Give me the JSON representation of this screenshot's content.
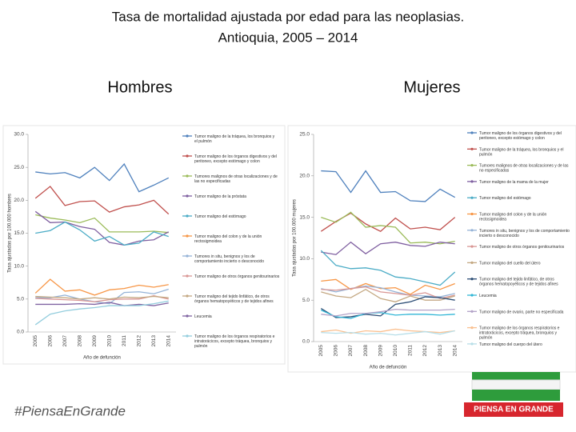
{
  "slide": {
    "title": [
      "Tasa de mortalidad ajustada por edad para las neoplasias.",
      "Antioquia, 2005 – 2014"
    ],
    "hashtag": "#PiensaEn​Grande",
    "logo": "PIENSA EN GRANDE"
  },
  "chart_data": [
    {
      "type": "line",
      "title": "Hombres",
      "x_label": "Año de defunción",
      "y_label": "Tasa ajustadas por 100.000 hombres",
      "categories": [
        "2005",
        "2006",
        "2007",
        "2008",
        "2009",
        "2010",
        "2011",
        "2012",
        "2013",
        "2014"
      ],
      "ylim": [
        0,
        30
      ],
      "yticks": [
        {
          "value": 0,
          "label": "0.0"
        },
        {
          "value": 5,
          "label": "5.0"
        },
        {
          "value": 10,
          "label": "10.0"
        },
        {
          "value": 15,
          "label": "15.0"
        },
        {
          "value": 20,
          "label": "20.0"
        },
        {
          "value": 25,
          "label": "25.0"
        },
        {
          "value": 30,
          "label": "30.0"
        }
      ],
      "series": [
        {
          "name": "Tumor maligno de la tráquea, los bronquios y el pulmón",
          "color": "#4f81bd",
          "values": [
            24.3,
            24.0,
            24.2,
            23.4,
            25.0,
            23.0,
            25.5,
            21.3,
            22.3,
            23.4
          ]
        },
        {
          "name": "Tumor maligno de los órganos digestivos y del peritoneo, excepto estómago y colon",
          "color": "#c0504d",
          "values": [
            20.3,
            22.1,
            19.2,
            19.8,
            19.9,
            18.2,
            19.0,
            19.3,
            20.0,
            17.9
          ]
        },
        {
          "name": "Tumores malignos de otras localizaciones y de las no especificadas",
          "color": "#9bbb59",
          "values": [
            17.8,
            17.3,
            17.0,
            16.6,
            17.3,
            15.2,
            15.2,
            15.2,
            15.3,
            15.1
          ]
        },
        {
          "name": "Tumor maligno de la próstata",
          "color": "#7f5fa0",
          "values": [
            18.3,
            16.6,
            16.7,
            16.0,
            15.6,
            13.6,
            13.2,
            13.8,
            14.0,
            15.2
          ]
        },
        {
          "name": "Tumor maligno del estómago",
          "color": "#4bacc6",
          "values": [
            15.0,
            15.4,
            16.7,
            15.5,
            13.8,
            14.5,
            13.2,
            13.5,
            15.2,
            14.5
          ]
        },
        {
          "name": "Tumor maligno del colon y de la unión rectosigmoidea",
          "color": "#f79646",
          "values": [
            5.9,
            8.0,
            6.2,
            6.4,
            5.6,
            6.4,
            6.6,
            7.1,
            6.8,
            7.2
          ]
        },
        {
          "name": "Tumores in situ, benignos y los de comportamiento incierto o desconocido",
          "color": "#95b3d7",
          "values": [
            5.2,
            5.2,
            5.6,
            5.0,
            4.6,
            4.3,
            6.0,
            6.1,
            5.8,
            6.5
          ]
        },
        {
          "name": "Tumor maligno de otros órganos genitourinarios",
          "color": "#d99694",
          "values": [
            5.1,
            5.0,
            4.9,
            4.8,
            4.6,
            4.9,
            5.0,
            5.0,
            5.5,
            5.0
          ]
        },
        {
          "name": "Tumor maligno del tejido linfático, de otros órganos hematopoyéticos y de tejidos afines",
          "color": "#c4a882",
          "values": [
            5.4,
            5.3,
            5.2,
            5.0,
            5.2,
            5.0,
            5.3,
            5.2,
            5.4,
            5.2
          ]
        },
        {
          "name": "Leucemia",
          "color": "#8064a2",
          "values": [
            4.2,
            4.2,
            4.2,
            4.3,
            4.2,
            4.5,
            4.0,
            4.2,
            4.0,
            4.4
          ]
        },
        {
          "name": "Tumor maligno de los órganos respiratorios e intratorácicos, excepto tráquea, bronquios y pulmón",
          "color": "#93cddd",
          "values": [
            1.1,
            2.7,
            3.2,
            3.5,
            3.7,
            4.0,
            4.0,
            4.0,
            4.3,
            4.7
          ]
        }
      ]
    },
    {
      "type": "line",
      "title": "Mujeres",
      "x_label": "Año de defunción",
      "y_label": "Tasa ajustadas por 100.000 mujeres",
      "categories": [
        "2005",
        "2006",
        "2007",
        "2008",
        "2009",
        "2010",
        "2011",
        "2012",
        "2013",
        "2014"
      ],
      "ylim": [
        0,
        25
      ],
      "yticks": [
        {
          "value": 0,
          "label": "0.0"
        },
        {
          "value": 5,
          "label": "5.0"
        },
        {
          "value": 10,
          "label": "10.0"
        },
        {
          "value": 15,
          "label": "15.0"
        },
        {
          "value": 20,
          "label": "20.0"
        },
        {
          "value": 25,
          "label": "25.0"
        }
      ],
      "series": [
        {
          "name": "Tumor maligno de los órganos digestivos y del peritoneo, excepto estómago y colon",
          "color": "#4f81bd",
          "values": [
            20.6,
            20.5,
            18.0,
            20.6,
            18.0,
            18.1,
            17.0,
            16.9,
            18.4,
            17.4
          ]
        },
        {
          "name": "Tumor maligno de la tráquea, los bronquios y el pulmón",
          "color": "#c0504d",
          "values": [
            13.3,
            14.5,
            15.5,
            14.2,
            13.3,
            14.9,
            13.6,
            13.8,
            13.5,
            15.0
          ]
        },
        {
          "name": "Tumores malignos de otras localizaciones y de las no especificadas",
          "color": "#9bbb59",
          "values": [
            15.0,
            14.4,
            15.6,
            13.8,
            14.0,
            13.8,
            11.9,
            12.0,
            11.8,
            12.1
          ]
        },
        {
          "name": "Tumor maligno de la mama de la mujer",
          "color": "#7f5fa0",
          "values": [
            10.8,
            10.5,
            12.0,
            10.6,
            11.8,
            12.0,
            11.6,
            11.5,
            12.0,
            11.8
          ]
        },
        {
          "name": "Tumor maligno del estómago",
          "color": "#4bacc6",
          "values": [
            11.0,
            9.2,
            8.8,
            8.9,
            8.6,
            7.8,
            7.6,
            7.2,
            6.8,
            8.4
          ]
        },
        {
          "name": "Tumor maligno del colon y de la unión rectosigmoidea",
          "color": "#f79646",
          "values": [
            7.3,
            7.5,
            6.3,
            7.0,
            6.4,
            6.5,
            5.7,
            6.8,
            6.3,
            7.0
          ]
        },
        {
          "name": "Tumores in situ, benignos y los de comportamiento incierto o desconocido",
          "color": "#95b3d7",
          "values": [
            6.4,
            6.0,
            6.4,
            6.7,
            6.5,
            6.0,
            5.6,
            5.5,
            5.4,
            5.8
          ]
        },
        {
          "name": "Tumor maligno de otros órganos genitourinarios",
          "color": "#d99694",
          "values": [
            6.3,
            6.2,
            6.4,
            6.6,
            6.0,
            5.8,
            5.6,
            5.9,
            5.2,
            5.6
          ]
        },
        {
          "name": "Tumor maligno del cuello del útero",
          "color": "#c4a882",
          "values": [
            6.0,
            5.5,
            5.3,
            6.3,
            5.2,
            4.8,
            5.5,
            5.0,
            5.0,
            5.5
          ]
        },
        {
          "name": "Tumor maligno del tejido linfático, de otros órganos hematopoyéticos y de tejidos afines",
          "color": "#2c4d75",
          "values": [
            4.0,
            2.9,
            3.0,
            3.3,
            3.1,
            4.5,
            4.8,
            5.4,
            5.3,
            5.0
          ]
        },
        {
          "name": "Leucemia",
          "color": "#31b6d6",
          "values": [
            3.8,
            3.0,
            2.8,
            3.4,
            3.5,
            3.2,
            3.3,
            3.3,
            3.2,
            3.3
          ]
        },
        {
          "name": "Tumor maligno de ovario, parte no especificada",
          "color": "#b3a2c7",
          "values": [
            3.3,
            3.1,
            3.4,
            3.4,
            3.6,
            3.9,
            3.8,
            3.8,
            3.8,
            3.9
          ]
        },
        {
          "name": "Tumor maligno de los órganos respiratorios e intratorácicos, excepto tráquea, bronquios y pulmón",
          "color": "#fac090",
          "values": [
            1.2,
            1.4,
            1.0,
            1.3,
            1.2,
            1.5,
            1.3,
            1.2,
            1.1,
            1.3
          ]
        },
        {
          "name": "Tumor maligno del cuerpo del útero",
          "color": "#b7dee8",
          "values": [
            1.1,
            1.0,
            1.1,
            0.9,
            1.0,
            0.8,
            1.0,
            1.2,
            0.9,
            1.3
          ]
        }
      ]
    }
  ]
}
